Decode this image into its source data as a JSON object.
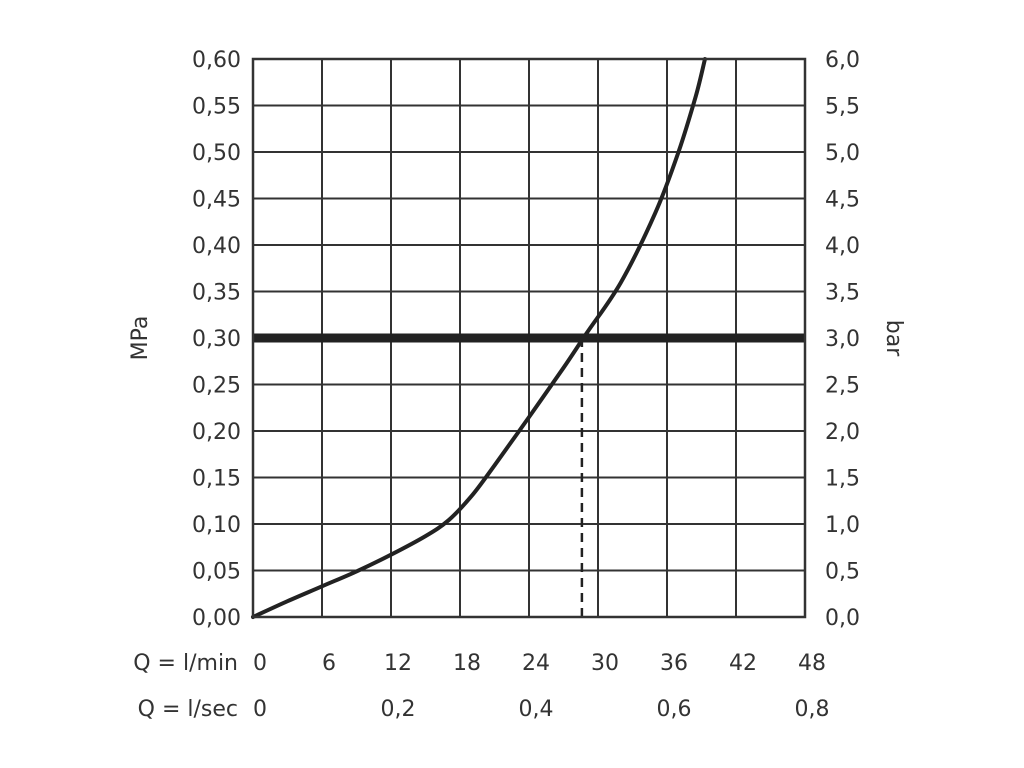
{
  "chart_data": {
    "type": "line",
    "left_axis": {
      "label": "MPa",
      "range": [
        0,
        0.6
      ],
      "ticks": [
        "0,00",
        "0,05",
        "0,10",
        "0,15",
        "0,20",
        "0,25",
        "0,30",
        "0,35",
        "0,40",
        "0,45",
        "0,50",
        "0,55",
        "0,60"
      ]
    },
    "right_axis": {
      "label": "bar",
      "range": [
        0,
        6.0
      ],
      "ticks": [
        "0,0",
        "0,5",
        "1,0",
        "1,5",
        "2,0",
        "2,5",
        "3,0",
        "3,5",
        "4,0",
        "4,5",
        "5,0",
        "5,5",
        "6,0"
      ]
    },
    "x_axis": {
      "range": [
        0,
        48
      ],
      "rows": [
        {
          "label": "Q = l/min",
          "ticks": [
            {
              "x": 0,
              "label": "0"
            },
            {
              "x": 6,
              "label": "6"
            },
            {
              "x": 12,
              "label": "12"
            },
            {
              "x": 18,
              "label": "18"
            },
            {
              "x": 24,
              "label": "24"
            },
            {
              "x": 30,
              "label": "30"
            },
            {
              "x": 36,
              "label": "36"
            },
            {
              "x": 42,
              "label": "42"
            },
            {
              "x": 48,
              "label": "48"
            }
          ]
        },
        {
          "label": "Q = l/sec",
          "ticks": [
            {
              "x": 0,
              "label": "0"
            },
            {
              "x": 12,
              "label": "0,2"
            },
            {
              "x": 24,
              "label": "0,4"
            },
            {
              "x": 36,
              "label": "0,6"
            },
            {
              "x": 48,
              "label": "0,8"
            }
          ]
        }
      ]
    },
    "grid": true,
    "series": [
      {
        "color": "#222222",
        "points": [
          [
            0,
            0.0
          ],
          [
            3,
            0.017
          ],
          [
            6,
            0.033
          ],
          [
            9,
            0.049
          ],
          [
            12,
            0.067
          ],
          [
            15,
            0.087
          ],
          [
            17,
            0.104
          ],
          [
            19,
            0.13
          ],
          [
            21,
            0.163
          ],
          [
            24,
            0.215
          ],
          [
            27,
            0.268
          ],
          [
            29,
            0.305
          ],
          [
            32,
            0.36
          ],
          [
            35,
            0.435
          ],
          [
            37,
            0.5
          ],
          [
            38.5,
            0.56
          ],
          [
            39.3,
            0.6
          ]
        ]
      }
    ],
    "reference_line": {
      "y": 0.3,
      "color": "#222222"
    },
    "marker_line": {
      "x": 28.6,
      "y_from": 0,
      "y_to": 0.3,
      "style": "dashed",
      "color": "#222222"
    }
  }
}
